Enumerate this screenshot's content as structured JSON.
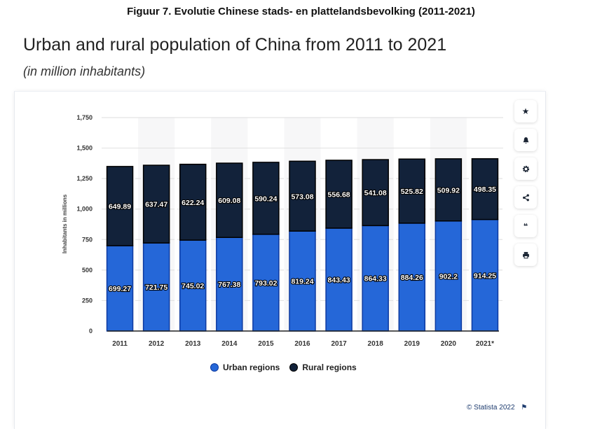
{
  "figure_caption": "Figuur 7. Evolutie Chinese stads- en plattelandsbevolking (2011-2021)",
  "toolbar": {
    "buttons": [
      {
        "name": "favorite",
        "icon": "star-icon",
        "glyph": "★"
      },
      {
        "name": "notify",
        "icon": "bell-icon",
        "glyph": "🔔"
      },
      {
        "name": "settings",
        "icon": "gear-icon",
        "glyph": "⚙"
      },
      {
        "name": "share",
        "icon": "share-icon",
        "glyph": "<"
      },
      {
        "name": "cite",
        "icon": "quote-icon",
        "glyph": "❝"
      },
      {
        "name": "print",
        "icon": "printer-icon",
        "glyph": "⎙"
      }
    ]
  },
  "credit": "© Statista 2022",
  "colors": {
    "urban": "#2567d8",
    "rural": "#12223a"
  },
  "chart_data": {
    "type": "bar",
    "stacked": true,
    "title": "Urban and rural population of China from 2011 to 2021",
    "subtitle": "(in million inhabitants)",
    "xlabel": "",
    "ylabel": "Inhabitants in millions",
    "ylim": [
      0,
      1750
    ],
    "yticks": [
      0,
      250,
      500,
      750,
      1000,
      1250,
      1500,
      1750
    ],
    "ytick_labels": [
      "0",
      "250",
      "500",
      "750",
      "1,000",
      "1,250",
      "1,500",
      "1,750"
    ],
    "grid": true,
    "legend_position": "bottom",
    "categories": [
      "2011",
      "2012",
      "2013",
      "2014",
      "2015",
      "2016",
      "2017",
      "2018",
      "2019",
      "2020",
      "2021*"
    ],
    "series": [
      {
        "name": "Urban regions",
        "values": [
          699.27,
          721.75,
          745.02,
          767.38,
          793.02,
          819.24,
          843.43,
          864.33,
          884.26,
          902.2,
          914.25
        ]
      },
      {
        "name": "Rural regions",
        "values": [
          649.89,
          637.47,
          622.24,
          609.08,
          590.24,
          573.08,
          556.68,
          541.08,
          525.82,
          509.92,
          498.35
        ]
      }
    ]
  }
}
